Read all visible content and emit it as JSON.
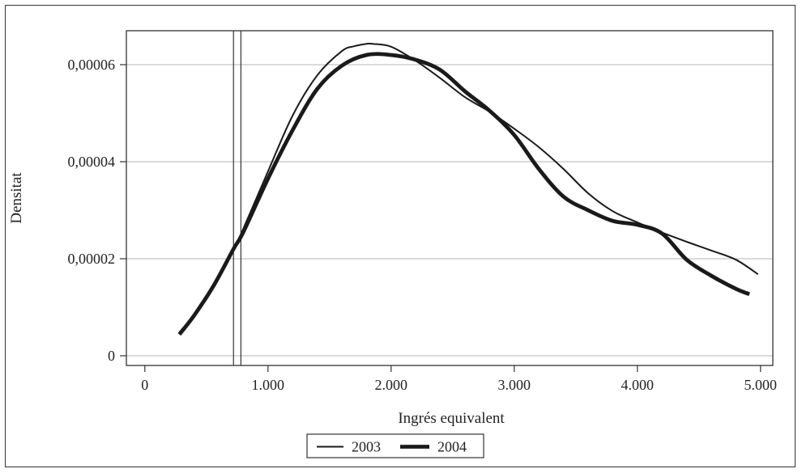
{
  "chart_data": {
    "type": "line",
    "title": "",
    "xlabel": "Ingrés equivalent",
    "ylabel": "Densitat",
    "xlim": [
      -150,
      5100
    ],
    "ylim": [
      -2e-06,
      6.7e-05
    ],
    "xticks": [
      0,
      1000,
      2000,
      3000,
      4000,
      5000
    ],
    "xtick_labels": [
      "0",
      "1.000",
      "2.000",
      "3.000",
      "4.000",
      "5.000"
    ],
    "yticks": [
      0,
      2e-05,
      4e-05,
      6e-05
    ],
    "ytick_labels": [
      "0",
      "0,00002",
      "0,00004",
      "0,00006"
    ],
    "grid": "horizontal",
    "legend_position": "bottom-center",
    "reference_lines_x": [
      720,
      780
    ],
    "series": [
      {
        "name": "2003",
        "style": "thin",
        "x": [
          280,
          400,
          560,
          720,
          800,
          1000,
          1200,
          1400,
          1600,
          1700,
          1800,
          1850,
          2000,
          2200,
          2400,
          2600,
          2800,
          3000,
          3200,
          3400,
          3600,
          3800,
          4000,
          4200,
          4400,
          4600,
          4800,
          4980
        ],
        "y": [
          4.8e-06,
          8.5e-06,
          1.45e-05,
          2.2e-05,
          2.62e-05,
          3.8e-05,
          4.95e-05,
          5.78e-05,
          6.28e-05,
          6.38e-05,
          6.43e-05,
          6.43e-05,
          6.37e-05,
          6.08e-05,
          5.72e-05,
          5.33e-05,
          5.03e-05,
          4.68e-05,
          4.3e-05,
          3.85e-05,
          3.35e-05,
          2.98e-05,
          2.75e-05,
          2.54e-05,
          2.35e-05,
          2.17e-05,
          1.98e-05,
          1.68e-05
        ]
      },
      {
        "name": "2004",
        "style": "thick",
        "x": [
          280,
          400,
          560,
          720,
          800,
          1000,
          1200,
          1400,
          1600,
          1800,
          2000,
          2200,
          2400,
          2600,
          2800,
          3000,
          3200,
          3400,
          3600,
          3800,
          4000,
          4200,
          4400,
          4600,
          4800,
          4910
        ],
        "y": [
          4.4e-06,
          8.3e-06,
          1.45e-05,
          2.2e-05,
          2.55e-05,
          3.65e-05,
          4.65e-05,
          5.5e-05,
          5.98e-05,
          6.2e-05,
          6.2e-05,
          6.1e-05,
          5.89e-05,
          5.45e-05,
          5.05e-05,
          4.55e-05,
          3.85e-05,
          3.28e-05,
          3e-05,
          2.78e-05,
          2.7e-05,
          2.52e-05,
          1.98e-05,
          1.65e-05,
          1.38e-05,
          1.27e-05
        ]
      }
    ]
  }
}
